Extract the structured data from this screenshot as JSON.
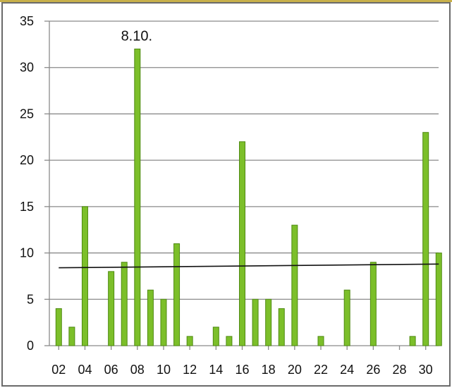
{
  "chart_data": {
    "type": "bar",
    "title": "",
    "xlabel": "",
    "ylabel": "",
    "ylim": [
      0,
      35
    ],
    "yticks": [
      0,
      5,
      10,
      15,
      20,
      25,
      30,
      35
    ],
    "x": [
      2,
      3,
      4,
      6,
      7,
      8,
      9,
      10,
      11,
      12,
      14,
      15,
      16,
      17,
      18,
      19,
      20,
      22,
      24,
      26,
      29,
      30,
      31
    ],
    "values": [
      4,
      2,
      15,
      8,
      9,
      32,
      6,
      5,
      11,
      1,
      2,
      1,
      22,
      5,
      5,
      4,
      13,
      1,
      6,
      9,
      1,
      23,
      10
    ],
    "xtick_labels": [
      "02",
      "04",
      "06",
      "08",
      "10",
      "12",
      "14",
      "16",
      "18",
      "20",
      "22",
      "24",
      "26",
      "28",
      "30"
    ],
    "annotation": {
      "text": "8.10.",
      "x": 8
    },
    "trendline": {
      "x_start": 2,
      "y_start": 8.4,
      "x_end": 31,
      "y_end": 8.8
    },
    "grid": true,
    "colors": {
      "bar": "#7cbf2a",
      "bar_edge": "#4f8a12",
      "trend": "#111111",
      "grid": "#8a8a8a"
    }
  }
}
